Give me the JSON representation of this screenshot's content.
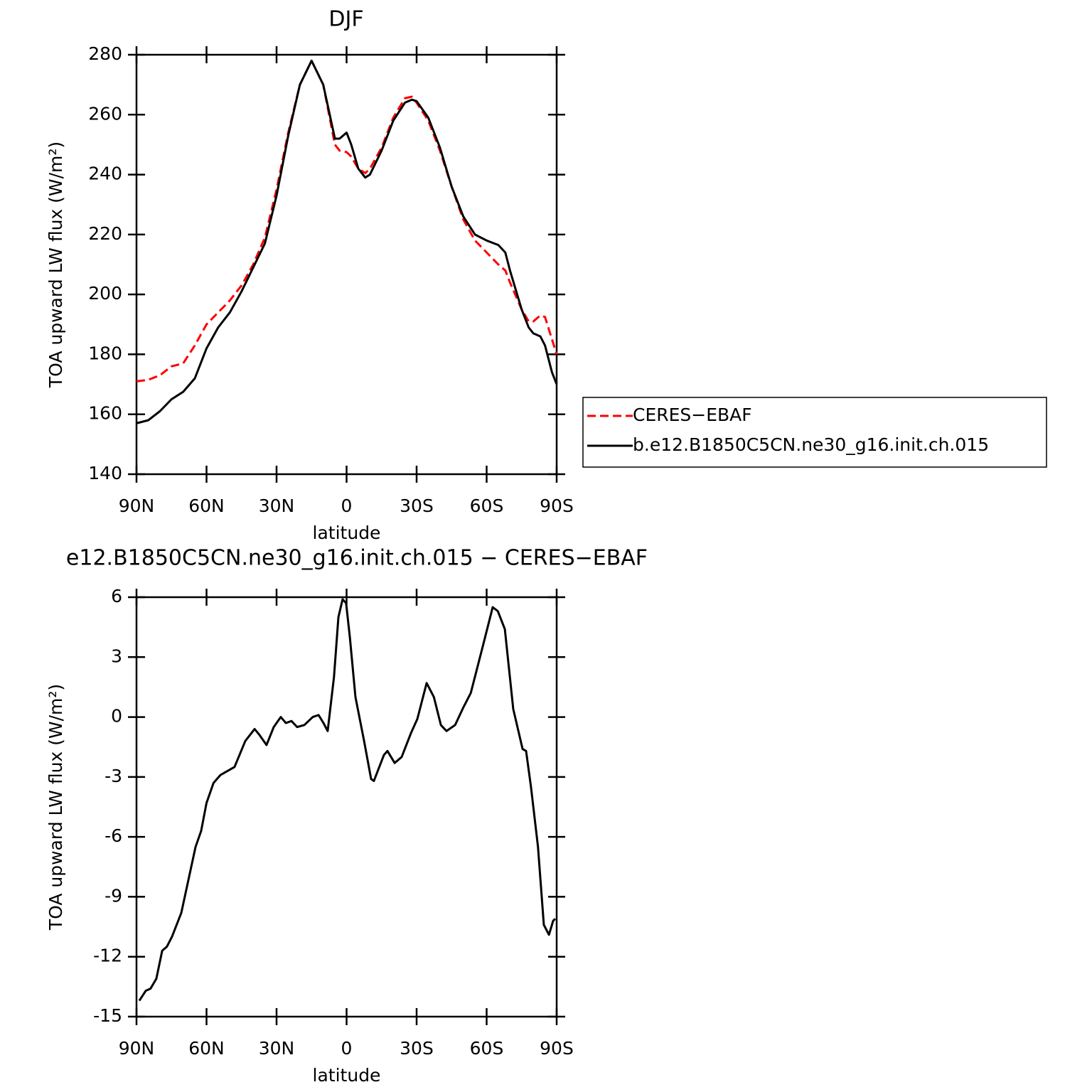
{
  "chart_data": [
    {
      "type": "line",
      "title": "DJF",
      "x_label": "latitude",
      "y_label": "TOA upward LW flux (W/m²)",
      "xlim": [
        90,
        -90
      ],
      "ylim": [
        140,
        280
      ],
      "xticks": [
        {
          "value": 90,
          "label": "90N"
        },
        {
          "value": 60,
          "label": "60N"
        },
        {
          "value": 30,
          "label": "30N"
        },
        0,
        {
          "value": -30,
          "label": "30S"
        },
        {
          "value": -60,
          "label": "60S"
        },
        {
          "value": -90,
          "label": "90S"
        }
      ],
      "yticks": [
        140,
        160,
        180,
        200,
        220,
        240,
        260,
        280
      ],
      "legend": "right",
      "x": [
        90,
        85,
        80,
        75,
        70,
        65,
        60,
        55,
        50,
        45,
        40,
        35,
        30,
        25,
        20,
        15,
        10,
        5,
        3,
        0,
        -2,
        -5,
        -8,
        -10,
        -15,
        -20,
        -25,
        -28,
        -30,
        -35,
        -40,
        -45,
        -50,
        -55,
        -60,
        -65,
        -68,
        -70,
        -75,
        -78,
        -80,
        -83,
        -85,
        -88,
        -90
      ],
      "series": [
        {
          "name": "CERES−EBAF",
          "color": "#ff0000",
          "linestyle": "dashed",
          "values": [
            171,
            171.5,
            173,
            176,
            177,
            183,
            190,
            194,
            198,
            203,
            210,
            219,
            235,
            254,
            270,
            278,
            270,
            250,
            248,
            247.5,
            246,
            242,
            240.5,
            242,
            249,
            259,
            265.5,
            266,
            264,
            258,
            248,
            236,
            225,
            218,
            214,
            210,
            208,
            204,
            195,
            191,
            191,
            193,
            192.5,
            185,
            180
          ]
        },
        {
          "name": "b.e12.B1850C5CN.ne30_g16.init.ch.015",
          "color": "#000000",
          "linestyle": "solid",
          "values": [
            157,
            158,
            161,
            165,
            167.5,
            172,
            182,
            189,
            194,
            201,
            209,
            217,
            233,
            253,
            270,
            278,
            270,
            252,
            252,
            254,
            250,
            242,
            239,
            240,
            248,
            258,
            264,
            265,
            264.5,
            259,
            249,
            236,
            226,
            220,
            218,
            216.5,
            214,
            208,
            195,
            189,
            187,
            186,
            183,
            174,
            170
          ]
        }
      ]
    },
    {
      "type": "line",
      "title": "e12.B1850C5CN.ne30_g16.init.ch.015 − CERES−EBAF",
      "x_label": "latitude",
      "y_label": "TOA upward LW flux (W/m²)",
      "xlim": [
        90,
        -90
      ],
      "ylim": [
        -15,
        6
      ],
      "xticks": [
        {
          "value": 90,
          "label": "90N"
        },
        {
          "value": 60,
          "label": "60N"
        },
        {
          "value": 30,
          "label": "30N"
        },
        0,
        {
          "value": -30,
          "label": "30S"
        },
        {
          "value": -60,
          "label": "60S"
        },
        {
          "value": -90,
          "label": "90S"
        }
      ],
      "yticks": [
        -15,
        -12,
        -9,
        -6,
        -3,
        0,
        3,
        6
      ],
      "color": "#000000",
      "x": [
        88.8,
        86,
        84,
        81.5,
        79,
        77,
        74.8,
        70.8,
        68.4,
        64.7,
        62.3,
        60,
        57,
        54,
        51,
        48,
        43.4,
        39.4,
        37.3,
        34.3,
        31.2,
        28.2,
        26,
        23.6,
        21.2,
        18.1,
        14.5,
        12,
        9.9,
        8.1,
        5.4,
        3.5,
        1.7,
        0.2,
        -1.4,
        -3.8,
        -7.5,
        -10.5,
        -11.7,
        -16,
        -17.5,
        -20.6,
        -23.6,
        -27.6,
        -30.3,
        -34.3,
        -37.4,
        -40.4,
        -42.8,
        -46.5,
        -50.1,
        -53.2,
        -58.7,
        -62.6,
        -64.8,
        -67.8,
        -71.4,
        -75.4,
        -76.9,
        -79,
        -82,
        -84.5,
        -86.7,
        -88.5,
        -89.4
      ],
      "values": [
        -14.2,
        -13.7,
        -13.6,
        -13.1,
        -11.7,
        -11.5,
        -11.0,
        -9.8,
        -8.5,
        -6.5,
        -5.7,
        -4.3,
        -3.3,
        -2.9,
        -2.7,
        -2.5,
        -1.2,
        -0.6,
        -0.9,
        -1.4,
        -0.5,
        0,
        -0.3,
        -0.2,
        -0.5,
        -0.4,
        0,
        0.1,
        -0.3,
        -0.7,
        2.0,
        5.0,
        5.9,
        5.7,
        4.0,
        1.0,
        -1.2,
        -3.1,
        -3.2,
        -1.9,
        -1.7,
        -2.3,
        -2.0,
        -0.8,
        -0.1,
        1.7,
        1.0,
        -0.4,
        -0.7,
        -0.4,
        0.5,
        1.2,
        3.7,
        5.5,
        5.3,
        4.4,
        0.4,
        -1.6,
        -1.7,
        -3.5,
        -6.5,
        -10.4,
        -10.9,
        -10.2,
        -10.1
      ]
    }
  ]
}
